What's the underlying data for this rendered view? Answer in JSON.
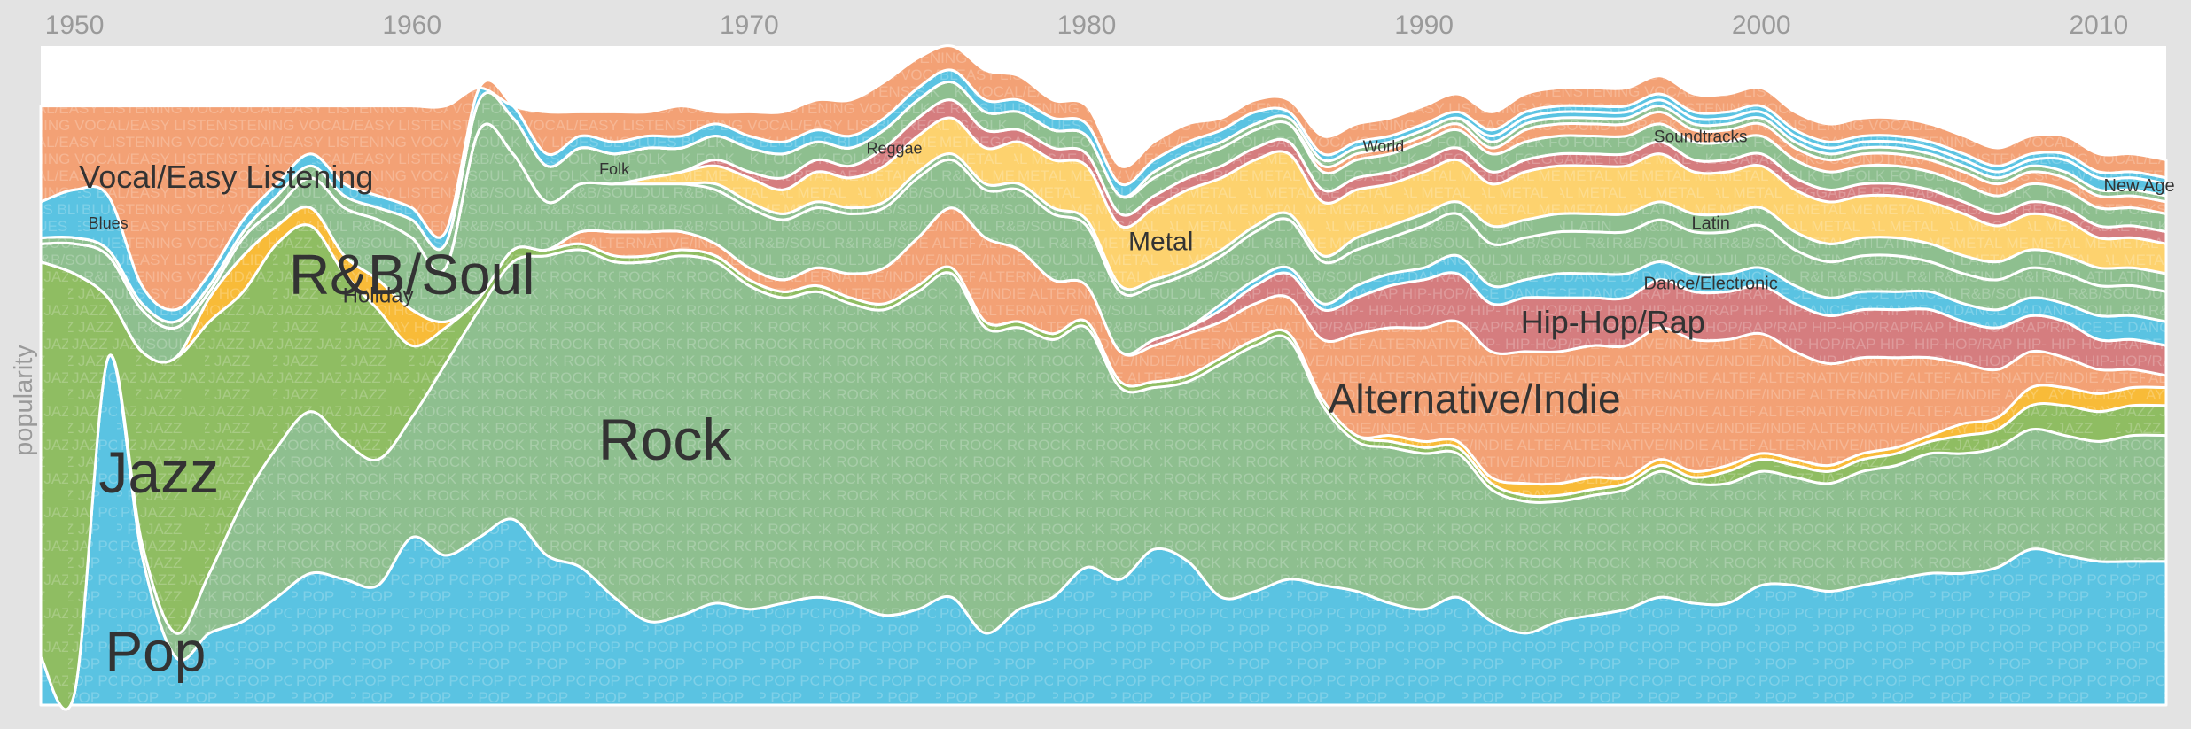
{
  "chart_data": {
    "type": "area",
    "title": "",
    "xlabel": "",
    "ylabel": "popularity",
    "xlim": [
      1949,
      2012
    ],
    "x_ticks": [
      "1950",
      "1960",
      "1970",
      "1980",
      "1990",
      "2000",
      "2010"
    ],
    "x": [
      1949,
      1950,
      1951,
      1952,
      1953,
      1954,
      1955,
      1956,
      1957,
      1958,
      1959,
      1960,
      1961,
      1962,
      1963,
      1964,
      1965,
      1966,
      1967,
      1968,
      1969,
      1970,
      1971,
      1972,
      1973,
      1974,
      1975,
      1976,
      1977,
      1978,
      1979,
      1980,
      1981,
      1982,
      1983,
      1984,
      1985,
      1986,
      1987,
      1988,
      1989,
      1990,
      1991,
      1992,
      1993,
      1994,
      1995,
      1996,
      1997,
      1998,
      1999,
      2000,
      2001,
      2002,
      2003,
      2004,
      2005,
      2006,
      2007,
      2008,
      2009,
      2010,
      2011,
      2012
    ],
    "series": [
      {
        "name": "Pop",
        "color": "#5ac3e2",
        "pattern_text": "POP",
        "values": [
          8,
          2,
          58,
          25,
          8,
          12,
          14,
          18,
          22,
          21,
          20,
          28,
          25,
          28,
          31,
          25,
          23,
          18,
          14,
          15,
          17,
          16,
          17,
          18,
          17,
          15,
          16,
          18,
          12,
          16,
          18,
          23,
          21,
          26,
          24,
          18,
          19,
          21,
          20,
          19,
          17,
          16,
          18,
          14,
          12,
          14,
          15,
          16,
          18,
          17,
          17,
          20,
          20,
          19,
          20,
          21,
          22,
          22,
          23,
          26,
          25,
          24,
          24,
          24
        ]
      },
      {
        "name": "Rock",
        "color": "#8ebf8f",
        "pattern_text": "ROCK",
        "values": [
          0,
          0,
          0,
          2,
          4,
          10,
          20,
          25,
          27,
          23,
          21,
          20,
          32,
          38,
          43,
          50,
          53,
          56,
          60,
          60,
          57,
          54,
          51,
          51,
          50,
          51,
          53,
          54,
          51,
          47,
          43,
          40,
          32,
          27,
          30,
          39,
          41,
          40,
          30,
          25,
          26,
          26,
          24,
          22,
          22,
          20,
          20,
          20,
          21,
          20,
          20,
          19,
          18,
          18,
          19,
          19,
          20,
          20,
          20,
          20,
          20,
          20,
          21,
          21
        ]
      },
      {
        "name": "Jazz",
        "color": "#8fbd62",
        "pattern_text": "JAZZ",
        "values": [
          66,
          70,
          10,
          32,
          46,
          42,
          35,
          34,
          31,
          28,
          25,
          12,
          6,
          2,
          2,
          1,
          1,
          1,
          1,
          1,
          1,
          1,
          1,
          1,
          1,
          1,
          1,
          1,
          1,
          1,
          1,
          1,
          1,
          1,
          1,
          1,
          1,
          1,
          1,
          1,
          1,
          1,
          1,
          1,
          1,
          1,
          1,
          1,
          1,
          1,
          2,
          2,
          2,
          2,
          2,
          2,
          2,
          3,
          3,
          4,
          5,
          5,
          5,
          5
        ]
      },
      {
        "name": "Holiday",
        "color": "#f8bb38",
        "pattern_text": "HOLIDAY",
        "values": [
          0,
          0,
          0,
          0,
          0,
          4,
          6,
          3,
          3,
          3,
          5,
          6,
          1,
          0,
          0,
          0,
          0,
          0,
          0,
          0,
          0,
          0,
          0,
          0,
          0,
          0,
          0,
          0,
          0,
          0,
          0,
          0,
          0,
          0,
          0,
          0,
          0,
          0,
          0,
          0,
          1,
          1,
          1,
          1,
          2,
          2,
          2,
          1,
          1,
          1,
          1,
          1,
          1,
          1,
          1,
          1,
          1,
          2,
          2,
          3,
          3,
          3,
          3,
          3
        ]
      },
      {
        "name": "Alternative/Indie",
        "color": "#f3a175",
        "pattern_text": "ALTERNATIVE/INDIE",
        "values": [
          0,
          0,
          0,
          0,
          0,
          0,
          0,
          0,
          0,
          0,
          0,
          0,
          0,
          0,
          0,
          0,
          2,
          4,
          4,
          3,
          2,
          2,
          2,
          3,
          4,
          6,
          8,
          10,
          14,
          12,
          9,
          6,
          5,
          6,
          7,
          6,
          6,
          6,
          10,
          17,
          18,
          19,
          20,
          21,
          22,
          22,
          22,
          22,
          22,
          22,
          21,
          20,
          18,
          17,
          16,
          15,
          13,
          10,
          8,
          6,
          5,
          4,
          3,
          2
        ]
      },
      {
        "name": "Hip-Hop/Rap",
        "color": "#d57d7f",
        "pattern_text": "HIP-HOP/RAP",
        "values": [
          0,
          0,
          0,
          0,
          0,
          0,
          0,
          0,
          0,
          0,
          0,
          0,
          0,
          0,
          0,
          0,
          0,
          0,
          0,
          0,
          0,
          0,
          0,
          0,
          0,
          0,
          0,
          0,
          0,
          0,
          0,
          0,
          0,
          1,
          1,
          2,
          3,
          4,
          5,
          6,
          7,
          8,
          8,
          8,
          9,
          9,
          8,
          8,
          8,
          8,
          8,
          8,
          8,
          8,
          8,
          8,
          8,
          7,
          7,
          6,
          6,
          5,
          5,
          5
        ]
      },
      {
        "name": "Dance/Electronic",
        "color": "#5ac3e2",
        "pattern_text": "DANCE",
        "values": [
          0,
          0,
          0,
          0,
          0,
          0,
          0,
          0,
          0,
          0,
          0,
          0,
          0,
          0,
          0,
          0,
          0,
          0,
          0,
          0,
          0,
          0,
          0,
          0,
          0,
          0,
          0,
          0,
          0,
          0,
          0,
          0,
          0,
          0,
          0,
          1,
          1,
          1,
          1,
          2,
          2,
          2,
          3,
          3,
          3,
          4,
          4,
          4,
          3,
          3,
          3,
          3,
          3,
          3,
          3,
          3,
          3,
          3,
          3,
          3,
          3,
          4,
          4,
          4
        ]
      },
      {
        "name": "R&B/Soul",
        "color": "#8ebf8f",
        "pattern_text": "R&B/SOUL",
        "values": [
          3,
          5,
          7,
          7,
          5,
          1,
          3,
          3,
          5,
          8,
          10,
          12,
          9,
          28,
          16,
          8,
          8,
          8,
          8,
          8,
          9,
          10,
          10,
          10,
          10,
          10,
          10,
          8,
          8,
          10,
          11,
          10,
          10,
          9,
          9,
          8,
          8,
          8,
          7,
          6,
          6,
          7,
          7,
          7,
          7,
          7,
          7,
          7,
          7,
          7,
          7,
          7,
          6,
          6,
          6,
          6,
          5,
          5,
          5,
          5,
          5,
          5,
          5,
          5
        ]
      },
      {
        "name": "Latin",
        "color": "#8ebf8f",
        "pattern_text": "LATIN",
        "values": [
          0,
          0,
          0,
          0,
          0,
          0,
          0,
          0,
          0,
          0,
          0,
          0,
          0,
          0,
          0,
          0,
          0,
          0,
          0,
          0,
          1,
          1,
          1,
          1,
          1,
          1,
          1,
          1,
          1,
          1,
          1,
          1,
          1,
          1,
          1,
          1,
          1,
          1,
          1,
          2,
          2,
          2,
          2,
          3,
          3,
          3,
          3,
          3,
          3,
          3,
          3,
          3,
          3,
          3,
          3,
          3,
          3,
          3,
          3,
          3,
          3,
          3,
          3,
          3
        ]
      },
      {
        "name": "Metal",
        "color": "#fdd26e",
        "pattern_text": "METAL",
        "values": [
          0,
          0,
          0,
          0,
          0,
          0,
          0,
          0,
          0,
          0,
          0,
          0,
          0,
          0,
          0,
          0,
          0,
          0,
          1,
          2,
          3,
          4,
          4,
          5,
          5,
          6,
          6,
          6,
          6,
          7,
          8,
          9,
          10,
          12,
          13,
          12,
          11,
          10,
          9,
          8,
          7,
          7,
          7,
          7,
          8,
          8,
          8,
          8,
          8,
          7,
          7,
          7,
          7,
          7,
          7,
          7,
          7,
          7,
          6,
          6,
          6,
          5,
          5,
          5
        ]
      },
      {
        "name": "Reggae",
        "color": "#d57d7f",
        "pattern_text": "REGGAE",
        "values": [
          0,
          0,
          0,
          0,
          0,
          0,
          0,
          0,
          0,
          0,
          0,
          0,
          0,
          0,
          0,
          0,
          0,
          0,
          0,
          0,
          1,
          1,
          2,
          2,
          2,
          3,
          3,
          3,
          3,
          2,
          2,
          2,
          2,
          2,
          2,
          2,
          2,
          2,
          2,
          2,
          2,
          2,
          2,
          2,
          2,
          2,
          2,
          2,
          2,
          2,
          2,
          2,
          2,
          2,
          2,
          2,
          2,
          2,
          2,
          2,
          2,
          2,
          2,
          2
        ]
      },
      {
        "name": "Folk",
        "color": "#8ebf8f",
        "pattern_text": "FOLK",
        "values": [
          1,
          1,
          1,
          1,
          1,
          1,
          1,
          2,
          2,
          2,
          2,
          3,
          4,
          5,
          6,
          6,
          6,
          5,
          5,
          4,
          4,
          4,
          4,
          3,
          3,
          3,
          3,
          3,
          3,
          3,
          3,
          3,
          3,
          3,
          3,
          3,
          3,
          3,
          3,
          3,
          3,
          3,
          3,
          3,
          3,
          3,
          3,
          3,
          3,
          3,
          3,
          3,
          3,
          3,
          3,
          3,
          3,
          3,
          3,
          3,
          3,
          3,
          3,
          3
        ]
      },
      {
        "name": "Soundtracks",
        "color": "#f3a175",
        "pattern_text": "SOUNDTRACKS",
        "values": [
          0,
          0,
          0,
          0,
          0,
          0,
          0,
          0,
          0,
          0,
          0,
          0,
          0,
          0,
          0,
          0,
          0,
          0,
          0,
          0,
          0,
          0,
          0,
          0,
          0,
          0,
          0,
          0,
          0,
          0,
          0,
          0,
          0,
          0,
          0,
          0,
          0,
          0,
          1,
          1,
          1,
          1,
          1,
          1,
          2,
          2,
          2,
          2,
          2,
          2,
          2,
          2,
          2,
          2,
          2,
          2,
          2,
          2,
          2,
          2,
          2,
          2,
          2,
          2
        ]
      },
      {
        "name": "World",
        "color": "#8ebf8f",
        "pattern_text": "WORLD",
        "values": [
          0,
          0,
          0,
          0,
          0,
          0,
          0,
          0,
          0,
          0,
          0,
          0,
          0,
          0,
          0,
          0,
          0,
          0,
          0,
          0,
          0,
          0,
          0,
          0,
          0,
          0,
          0,
          0,
          0,
          0,
          0,
          0,
          0,
          1,
          1,
          1,
          1,
          1,
          1,
          1,
          1,
          1,
          1,
          1,
          1,
          1,
          1,
          1,
          1,
          1,
          1,
          1,
          1,
          1,
          1,
          1,
          1,
          1,
          1,
          1,
          1,
          1,
          1,
          1
        ]
      },
      {
        "name": "New Age",
        "color": "#5ac3e2",
        "pattern_text": "NEW AGE",
        "values": [
          0,
          0,
          0,
          0,
          0,
          0,
          0,
          0,
          0,
          0,
          0,
          0,
          0,
          0,
          0,
          0,
          0,
          0,
          0,
          0,
          0,
          0,
          0,
          0,
          0,
          0,
          0,
          0,
          0,
          0,
          0,
          0,
          0,
          0,
          0,
          0,
          0,
          0,
          0,
          0,
          0,
          0,
          0,
          1,
          1,
          1,
          1,
          1,
          1,
          1,
          1,
          1,
          1,
          1,
          1,
          1,
          1,
          1,
          1,
          1,
          2,
          2,
          2,
          2
        ]
      },
      {
        "name": "Blues",
        "color": "#5ac3e2",
        "pattern_text": "BLUES",
        "values": [
          6,
          8,
          9,
          3,
          2,
          2,
          2,
          2,
          2,
          2,
          2,
          2,
          2,
          2,
          2,
          2,
          2,
          2,
          2,
          2,
          2,
          2,
          2,
          2,
          2,
          2,
          2,
          2,
          2,
          2,
          2,
          2,
          2,
          2,
          2,
          2,
          2,
          1,
          1,
          1,
          1,
          1,
          1,
          1,
          1,
          1,
          1,
          1,
          1,
          1,
          1,
          1,
          1,
          1,
          1,
          1,
          1,
          1,
          1,
          1,
          1,
          1,
          1,
          1
        ]
      },
      {
        "name": "Vocal/Easy Listening",
        "color": "#f3a175",
        "pattern_text": "VOCAL/EASY LISTENING",
        "values": [
          16,
          14,
          15,
          30,
          34,
          28,
          19,
          13,
          8,
          13,
          15,
          17,
          21,
          0,
          0,
          7,
          4,
          5,
          4,
          5,
          2,
          4,
          5,
          5,
          6,
          6,
          5,
          4,
          5,
          4,
          3,
          3,
          3,
          3,
          3,
          2,
          2,
          2,
          3,
          3,
          3,
          3,
          3,
          3,
          3,
          3,
          3,
          3,
          3,
          3,
          3,
          3,
          3,
          3,
          3,
          3,
          3,
          3,
          3,
          3,
          3,
          3,
          3,
          3
        ]
      }
    ],
    "labels": [
      {
        "series": "Pop",
        "text": "Pop",
        "x": 1952.4,
        "size": 64
      },
      {
        "series": "Jazz",
        "text": "Jazz",
        "x": 1952.5,
        "size": 66
      },
      {
        "series": "Rock",
        "text": "Rock",
        "x": 1967.5,
        "size": 66
      },
      {
        "series": "Alternative/Indie",
        "text": "Alternative/Indie",
        "x": 1991.5,
        "size": 46
      },
      {
        "series": "Hip-Hop/Rap",
        "text": "Hip-Hop/Rap",
        "x": 1995.6,
        "size": 36
      },
      {
        "series": "Dance/Electronic",
        "text": "Dance/Electronic",
        "x": 1998.5,
        "size": 20
      },
      {
        "series": "Holiday",
        "text": "Holiday",
        "x": 1959,
        "size": 24
      },
      {
        "series": "R&B/Soul",
        "text": "R&B/Soul",
        "x": 1960,
        "size": 64
      },
      {
        "series": "Vocal/Easy Listening",
        "text": "Vocal/Easy Listening",
        "x": 1954.5,
        "size": 36
      },
      {
        "series": "Blues",
        "text": "Blues",
        "x": 1951,
        "size": 18
      },
      {
        "series": "Latin",
        "text": "Latin",
        "x": 1998.5,
        "size": 20
      },
      {
        "series": "Metal",
        "text": "Metal",
        "x": 1982.2,
        "size": 30
      },
      {
        "series": "Reggae",
        "text": "Reggae",
        "x": 1974.3,
        "size": 18
      },
      {
        "series": "Folk",
        "text": "Folk",
        "x": 1966,
        "size": 18
      },
      {
        "series": "World",
        "text": "World",
        "x": 1988.8,
        "size": 18
      },
      {
        "series": "Soundtracks",
        "text": "Soundtracks",
        "x": 1998.2,
        "size": 19
      },
      {
        "series": "New Age",
        "text": "New Age",
        "x": 2011.2,
        "size": 20
      }
    ]
  }
}
